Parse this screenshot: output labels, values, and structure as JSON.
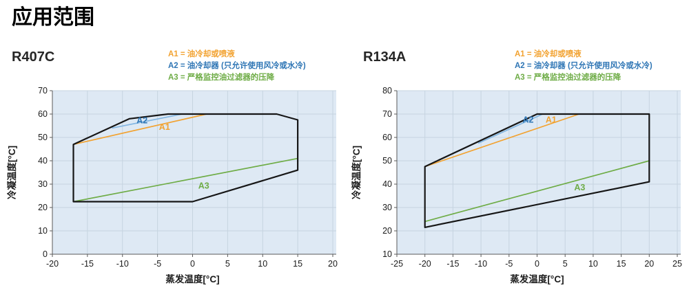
{
  "page": {
    "title": "应用范围"
  },
  "colors": {
    "accent_orange": "#F2A230",
    "accent_blue_line": "#82B6E2",
    "accent_blue_text": "#2F76B5",
    "accent_green": "#6EAC46",
    "envelope": "#161616",
    "plot_bg": "#DEE9F4",
    "grid": "#C6D4E0",
    "axis": "#595959",
    "text": "#1A1A1A"
  },
  "legend": {
    "items": [
      {
        "id": "A1",
        "label": "A1 = 油冷却或喷液",
        "color": "#F2A230"
      },
      {
        "id": "A2",
        "label": "A2 = 油冷却器 (只允许使用风冷或水冷)",
        "color": "#2F76B5"
      },
      {
        "id": "A3",
        "label": "A3 = 严格监控油过滤器的压降",
        "color": "#6EAC46"
      }
    ]
  },
  "chart_data": [
    {
      "type": "line",
      "title": "R407C",
      "xlabel": "蒸发温度[°C]",
      "ylabel": "冷凝温度[°C]",
      "xlim": [
        -20,
        20
      ],
      "ylim": [
        0,
        70
      ],
      "xticks": [
        -20,
        -15,
        -10,
        -5,
        0,
        5,
        10,
        15,
        20
      ],
      "yticks": [
        0,
        10,
        20,
        30,
        40,
        50,
        60,
        70
      ],
      "grid": true,
      "legend_position": "top",
      "envelope": [
        [
          -17,
          22.5
        ],
        [
          -17,
          47
        ],
        [
          -9,
          58
        ],
        [
          -3.5,
          60
        ],
        [
          12,
          60
        ],
        [
          15,
          57.5
        ],
        [
          15,
          36
        ],
        [
          0,
          22.5
        ]
      ],
      "series": [
        {
          "name": "A1",
          "points": [
            [
              -17,
              47
            ],
            [
              2,
              60
            ]
          ],
          "line_color": "#F2A230",
          "label_color": "#F2A230",
          "label_at": [
            -4.0,
            54.6
          ]
        },
        {
          "name": "A2",
          "points": [
            [
              -11.5,
              54
            ],
            [
              -1.5,
              60
            ]
          ],
          "line_color": "#82B6E2",
          "label_color": "#2F76B5",
          "label_at": [
            -7.2,
            57.4
          ]
        },
        {
          "name": "A3",
          "points": [
            [
              -17,
              22.5
            ],
            [
              15,
              41
            ]
          ],
          "line_color": "#6EAC46",
          "label_color": "#6EAC46",
          "label_at": [
            1.6,
            29.4
          ]
        }
      ]
    },
    {
      "type": "line",
      "title": "R134A",
      "xlabel": "蒸发温度[°C]",
      "ylabel": "冷凝温度[°C]",
      "xlim": [
        -25,
        25
      ],
      "ylim": [
        10,
        80
      ],
      "xticks": [
        -25,
        -20,
        -15,
        -10,
        -5,
        0,
        5,
        10,
        15,
        20,
        25
      ],
      "yticks": [
        10,
        20,
        30,
        40,
        50,
        60,
        70,
        80
      ],
      "grid": true,
      "legend_position": "top",
      "envelope": [
        [
          -20,
          21.5
        ],
        [
          -20,
          47.5
        ],
        [
          0,
          70
        ],
        [
          20,
          70
        ],
        [
          20,
          41
        ]
      ],
      "series": [
        {
          "name": "A1",
          "points": [
            [
              -20,
              47.5
            ],
            [
              7.5,
              70
            ]
          ],
          "line_color": "#F2A230",
          "label_color": "#F2A230",
          "label_at": [
            2.5,
            67.6
          ]
        },
        {
          "name": "A2",
          "points": [
            [
              -10.5,
              57.5
            ],
            [
              1,
              70
            ]
          ],
          "line_color": "#82B6E2",
          "label_color": "#2F76B5",
          "label_at": [
            -1.6,
            67.6
          ]
        },
        {
          "name": "A3",
          "points": [
            [
              -20,
              24
            ],
            [
              20,
              50
            ]
          ],
          "line_color": "#6EAC46",
          "label_color": "#6EAC46",
          "label_at": [
            7.6,
            38.7
          ]
        }
      ]
    }
  ]
}
